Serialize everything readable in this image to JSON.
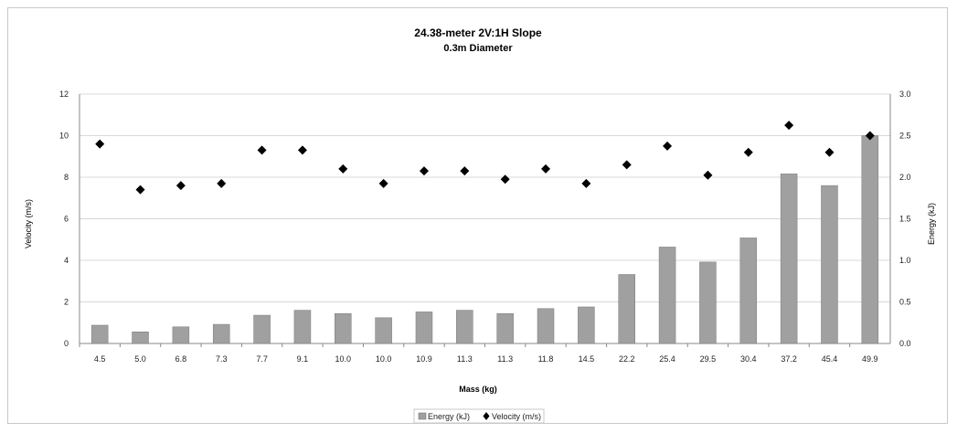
{
  "chart_data": {
    "type": "bar",
    "title": "24.38-meter 2V:1H Slope",
    "subtitle": "0.3m Diameter",
    "xlabel": "Mass (kg)",
    "ylabel_left": "Velocity (m/s)",
    "ylabel_right": "Energy (kJ)",
    "categories": [
      "4.5",
      "5.0",
      "6.8",
      "7.3",
      "7.7",
      "9.1",
      "10.0",
      "10.0",
      "10.9",
      "11.3",
      "11.3",
      "11.8",
      "14.5",
      "22.2",
      "25.4",
      "29.5",
      "30.4",
      "37.2",
      "45.4",
      "49.9"
    ],
    "y_left_ticks": [
      "0",
      "2",
      "4",
      "6",
      "8",
      "10",
      "12"
    ],
    "y_right_ticks": [
      "0.0",
      "0.5",
      "1.0",
      "1.5",
      "2.0",
      "2.5",
      "3.0"
    ],
    "ylim_left": [
      0,
      12
    ],
    "ylim_right": [
      0,
      3.0
    ],
    "grid": true,
    "legend_position": "bottom",
    "series": [
      {
        "name": "Energy (kJ)",
        "type": "bar",
        "axis": "right",
        "color": "#a0a0a0",
        "values": [
          0.22,
          0.14,
          0.2,
          0.23,
          0.34,
          0.4,
          0.36,
          0.31,
          0.38,
          0.4,
          0.36,
          0.42,
          0.44,
          0.83,
          1.16,
          0.98,
          1.27,
          2.04,
          1.9,
          2.5
        ]
      },
      {
        "name": "Velocity (m/s)",
        "type": "scatter",
        "axis": "left",
        "color": "#000000",
        "values": [
          9.6,
          7.4,
          7.6,
          7.7,
          9.3,
          9.3,
          8.4,
          7.7,
          8.3,
          8.3,
          7.9,
          8.4,
          7.7,
          8.6,
          9.5,
          8.1,
          9.2,
          10.5,
          9.2,
          10.0
        ]
      }
    ]
  }
}
